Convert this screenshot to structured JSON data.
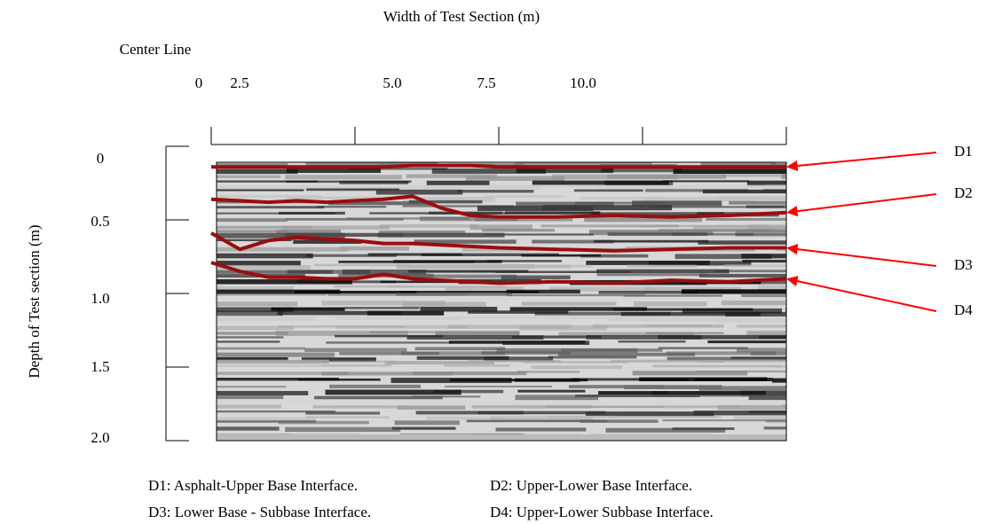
{
  "chart_data": {
    "type": "line",
    "title": "Width of Test Section (m)",
    "annotation": "Center Line",
    "y_label": "Depth of Test section (m)",
    "x": [
      0,
      0.5,
      1,
      1.5,
      2,
      2.5,
      3,
      3.5,
      4,
      4.5,
      5,
      6,
      7,
      8,
      9,
      10
    ],
    "xlim": [
      0,
      10
    ],
    "xticks": [
      0,
      2.5,
      {
        "value": 5,
        "label": "5.0"
      },
      7.5,
      {
        "value": 10,
        "label": "10.0"
      }
    ],
    "ylim": [
      0,
      2
    ],
    "yticks": [
      0,
      0.5,
      {
        "value": 1,
        "label": "1.0"
      },
      1.5,
      {
        "value": 2,
        "label": "2.0"
      }
    ],
    "y_inverted": true,
    "series": [
      {
        "name": "D1",
        "color": "#9b0d0d",
        "values": [
          0.14,
          0.14,
          0.14,
          0.14,
          0.14,
          0.14,
          0.14,
          0.13,
          0.13,
          0.13,
          0.14,
          0.14,
          0.14,
          0.14,
          0.14,
          0.14
        ]
      },
      {
        "name": "D2",
        "color": "#9b0d0d",
        "values": [
          0.36,
          0.37,
          0.38,
          0.37,
          0.38,
          0.37,
          0.36,
          0.34,
          0.42,
          0.47,
          0.48,
          0.48,
          0.47,
          0.48,
          0.47,
          0.45
        ]
      },
      {
        "name": "D3",
        "color": "#9b0d0d",
        "values": [
          0.59,
          0.7,
          0.64,
          0.62,
          0.63,
          0.64,
          0.66,
          0.66,
          0.67,
          0.68,
          0.69,
          0.7,
          0.71,
          0.7,
          0.69,
          0.69
        ]
      },
      {
        "name": "D4",
        "color": "#9b0d0d",
        "values": [
          0.79,
          0.85,
          0.89,
          0.89,
          0.9,
          0.9,
          0.87,
          0.9,
          0.91,
          0.92,
          0.93,
          0.92,
          0.93,
          0.91,
          0.92,
          0.9
        ]
      }
    ],
    "arrow_color": "#ff0000",
    "notes": [
      "D1: Asphalt-Upper Base Interface.",
      "D2: Upper-Lower Base Interface.",
      "D3: Lower Base - Subbase Interface.",
      "D4: Upper-Lower Subbase Interface."
    ]
  }
}
